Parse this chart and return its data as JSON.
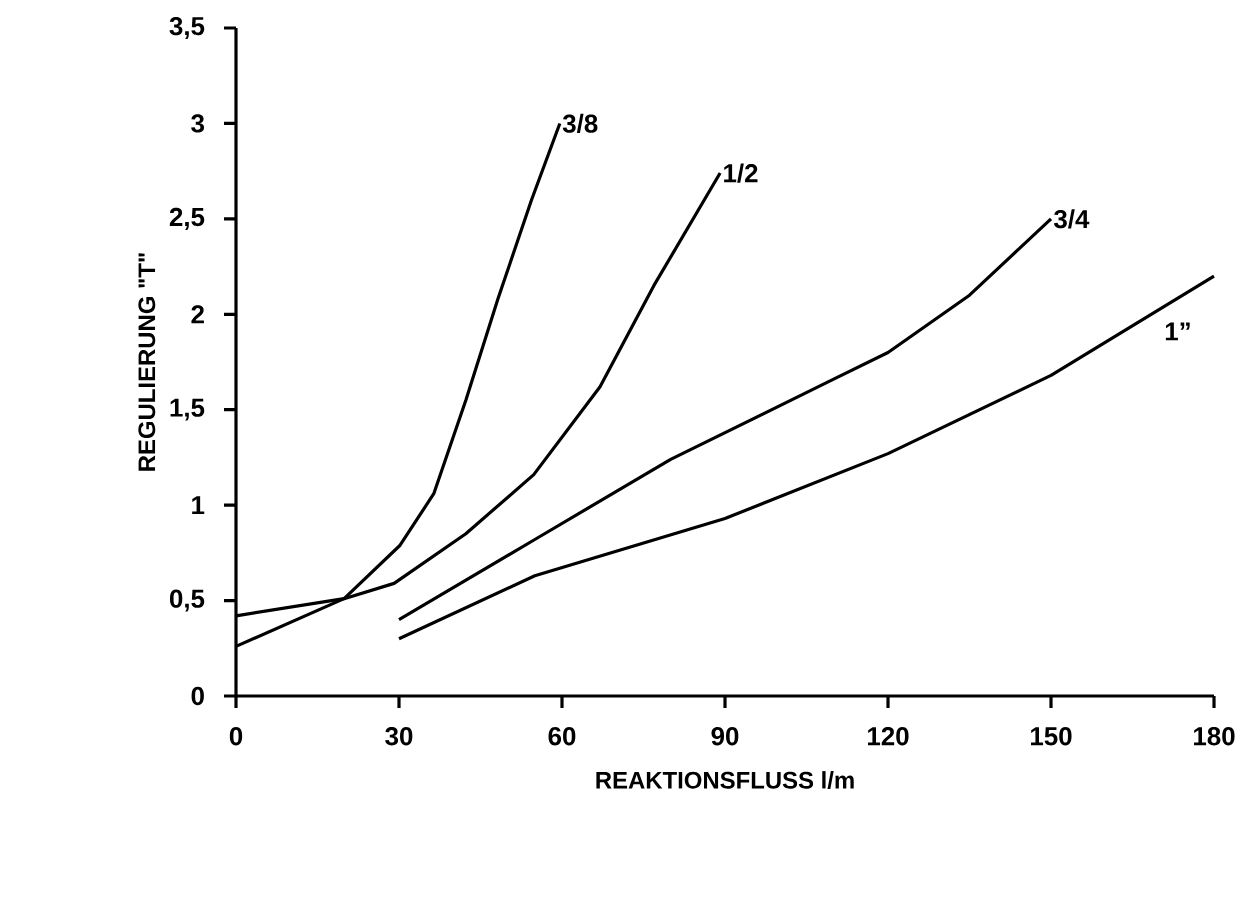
{
  "chart_data": {
    "type": "line",
    "xlabel": "REAKTIONSFLUSS l/m",
    "ylabel": "REGULIERUNG \"T\"",
    "xlim": [
      0,
      180
    ],
    "xticks": [
      0,
      30,
      60,
      90,
      120,
      150,
      180
    ],
    "ylim": [
      0,
      3.5
    ],
    "yticks": [
      0,
      {
        "value": 0.5,
        "label": "0,5"
      },
      1,
      {
        "value": 1.5,
        "label": "1,5"
      },
      2,
      {
        "value": 2.5,
        "label": "2,5"
      },
      3,
      {
        "value": 3.5,
        "label": "3,5"
      }
    ],
    "marker": "none",
    "line_style": "solid",
    "series": [
      {
        "name": "3/8",
        "color": "#000000",
        "x": [
          0,
          19.9,
          30.2,
          36.4,
          42.3,
          48.2,
          54.4,
          59.6
        ],
        "values": [
          0.26,
          0.51,
          0.79,
          1.06,
          1.55,
          2.08,
          2.6,
          3.0
        ]
      },
      {
        "name": "1/2",
        "color": "#000000",
        "x": [
          0,
          19.9,
          29.1,
          42.3,
          54.8,
          67,
          76.9,
          89.1
        ],
        "values": [
          0.42,
          0.51,
          0.59,
          0.85,
          1.16,
          1.62,
          2.15,
          2.74
        ]
      },
      {
        "name": "3/4",
        "color": "#000000",
        "x": [
          30,
          55,
          80,
          110,
          120,
          135,
          150
        ],
        "values": [
          0.4,
          0.82,
          1.24,
          1.66,
          1.8,
          2.1,
          2.5
        ]
      },
      {
        "name": "1”",
        "color": "#000000",
        "x": [
          30,
          55,
          90,
          120,
          150,
          180
        ],
        "values": [
          0.3,
          0.63,
          0.93,
          1.27,
          1.68,
          2.2
        ]
      }
    ]
  }
}
